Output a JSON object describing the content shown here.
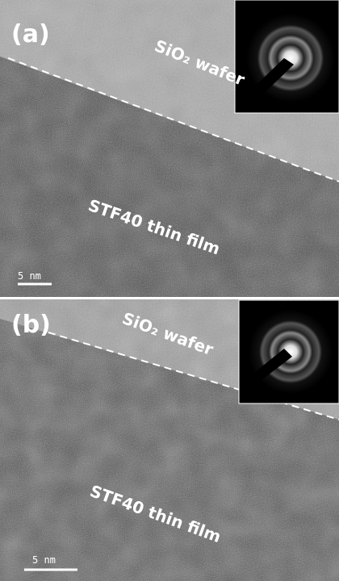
{
  "panels": [
    {
      "label": "(a)",
      "top_region": "SiO₂ wafer",
      "bottom_region": "STF40 thin film",
      "scale_bar": "5 nm"
    },
    {
      "label": "(b)",
      "top_region": "SiO₂ wafer",
      "bottom_region": "STF40 thin film",
      "scale_bar": "5 nm"
    }
  ]
}
